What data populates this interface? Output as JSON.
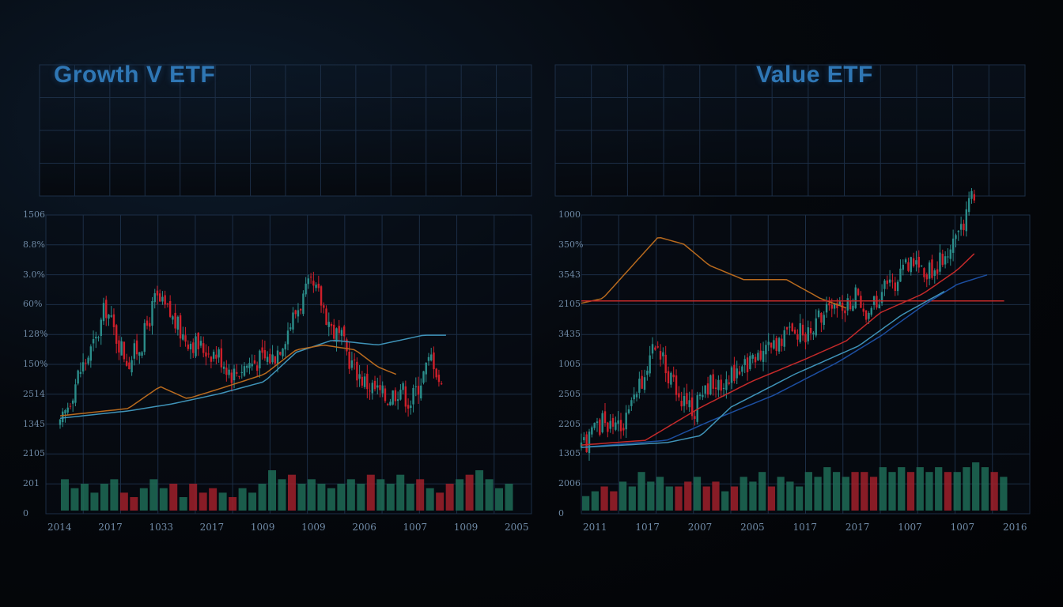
{
  "colors": {
    "grid": "#1c2e46",
    "up": "#2b8d8a",
    "down": "#cf1f2a",
    "vol_up": "#1e6b56",
    "vol_down": "#a0202a",
    "ma_orange": "#b86a1e",
    "ma_blue": "#3f93b8",
    "ma_navy": "#1c4ea0",
    "ma_red": "#c42a2a"
  },
  "chart_data": [
    {
      "type": "candlestick",
      "title": "Growth V ETF",
      "y_tick_labels": [
        "1506",
        "8.8%",
        "3.0%",
        "60%",
        "128%",
        "150%",
        "2514",
        "1345",
        "2105",
        "201",
        "0"
      ],
      "x_tick_labels": [
        "2014",
        "2017",
        "1033",
        "2017",
        "1009",
        "1009",
        "2006",
        "1007",
        "1009",
        "2005"
      ],
      "grid": true,
      "price_range": [
        0,
        10
      ],
      "price_path": [
        [
          0.0,
          1.6
        ],
        [
          0.04,
          3.8
        ],
        [
          0.08,
          5.2
        ],
        [
          0.1,
          6.6
        ],
        [
          0.12,
          5.5
        ],
        [
          0.15,
          4.3
        ],
        [
          0.18,
          5.1
        ],
        [
          0.21,
          6.9
        ],
        [
          0.24,
          6.3
        ],
        [
          0.27,
          5.4
        ],
        [
          0.31,
          4.9
        ],
        [
          0.35,
          4.6
        ],
        [
          0.38,
          3.8
        ],
        [
          0.41,
          4.2
        ],
        [
          0.44,
          4.4
        ],
        [
          0.47,
          4.5
        ],
        [
          0.49,
          5.2
        ],
        [
          0.52,
          6.4
        ],
        [
          0.55,
          7.4
        ],
        [
          0.57,
          7.0
        ],
        [
          0.6,
          5.6
        ],
        [
          0.62,
          5.2
        ],
        [
          0.64,
          4.3
        ],
        [
          0.67,
          3.5
        ],
        [
          0.7,
          3.1
        ],
        [
          0.72,
          2.8
        ],
        [
          0.75,
          3.3
        ],
        [
          0.77,
          2.6
        ],
        [
          0.8,
          3.8
        ],
        [
          0.82,
          4.6
        ],
        [
          0.84,
          3.2
        ]
      ],
      "moving_averages": [
        {
          "color_key": "ma_blue",
          "points": [
            [
              0.0,
              2.0
            ],
            [
              0.15,
              2.3
            ],
            [
              0.25,
              2.6
            ],
            [
              0.35,
              3.0
            ],
            [
              0.45,
              3.5
            ],
            [
              0.52,
              4.7
            ],
            [
              0.6,
              5.2
            ],
            [
              0.7,
              5.0
            ],
            [
              0.8,
              5.4
            ],
            [
              0.85,
              5.4
            ]
          ]
        },
        {
          "color_key": "ma_orange",
          "points": [
            [
              0.0,
              2.1
            ],
            [
              0.15,
              2.4
            ],
            [
              0.22,
              3.3
            ],
            [
              0.28,
              2.8
            ],
            [
              0.35,
              3.2
            ],
            [
              0.45,
              3.8
            ],
            [
              0.52,
              4.8
            ],
            [
              0.58,
              5.0
            ],
            [
              0.65,
              4.8
            ],
            [
              0.7,
              4.1
            ],
            [
              0.74,
              3.8
            ]
          ]
        }
      ],
      "volume_up_down": [
        1,
        1,
        1,
        1,
        1,
        1,
        0,
        0,
        1,
        1,
        1,
        0,
        1,
        0,
        0,
        0,
        1,
        0,
        1,
        1,
        1,
        1,
        1,
        0,
        1,
        1,
        1,
        1,
        1,
        1,
        1,
        0,
        1,
        1,
        1,
        1,
        0,
        1,
        0,
        0,
        1,
        0,
        1,
        1,
        1,
        1
      ],
      "volume_values": [
        7,
        5,
        6,
        4,
        6,
        7,
        4,
        3,
        5,
        7,
        5,
        6,
        3,
        6,
        4,
        5,
        4,
        3,
        5,
        4,
        6,
        9,
        7,
        8,
        6,
        7,
        6,
        5,
        6,
        7,
        6,
        8,
        7,
        6,
        8,
        6,
        7,
        5,
        4,
        6,
        7,
        8,
        9,
        7,
        5,
        6
      ]
    },
    {
      "type": "candlestick",
      "title": "Value ETF",
      "y_tick_labels": [
        "1000",
        "350%",
        "3543",
        "2105",
        "3435",
        "1005",
        "2505",
        "2205",
        "1305",
        "2006",
        "0"
      ],
      "x_tick_labels": [
        "2011",
        "1017",
        "2007",
        "2005",
        "1017",
        "2017",
        "1007",
        "1007",
        "2016"
      ],
      "grid": true,
      "price_range": [
        0,
        10
      ],
      "price_path": [
        [
          0.0,
          0.4
        ],
        [
          0.05,
          1.6
        ],
        [
          0.1,
          1.4
        ],
        [
          0.14,
          3.2
        ],
        [
          0.17,
          4.9
        ],
        [
          0.2,
          3.8
        ],
        [
          0.23,
          2.6
        ],
        [
          0.26,
          1.9
        ],
        [
          0.29,
          3.2
        ],
        [
          0.33,
          2.9
        ],
        [
          0.36,
          3.8
        ],
        [
          0.4,
          4.1
        ],
        [
          0.45,
          4.9
        ],
        [
          0.49,
          5.5
        ],
        [
          0.53,
          5.3
        ],
        [
          0.57,
          6.2
        ],
        [
          0.61,
          6.5
        ],
        [
          0.64,
          6.9
        ],
        [
          0.67,
          6.1
        ],
        [
          0.7,
          7.0
        ],
        [
          0.74,
          7.6
        ],
        [
          0.78,
          8.6
        ],
        [
          0.81,
          7.8
        ],
        [
          0.84,
          8.4
        ],
        [
          0.88,
          9.4
        ],
        [
          0.92,
          11.3
        ]
      ],
      "moving_averages": [
        {
          "color_key": "ma_orange",
          "points": [
            [
              0.0,
              6.6
            ],
            [
              0.05,
              6.8
            ],
            [
              0.12,
              8.2
            ],
            [
              0.18,
              9.4
            ],
            [
              0.24,
              9.1
            ],
            [
              0.3,
              8.2
            ],
            [
              0.38,
              7.6
            ],
            [
              0.48,
              7.6
            ],
            [
              0.56,
              6.8
            ],
            [
              0.62,
              6.4
            ]
          ]
        },
        {
          "color_key": "ma_red",
          "points": [
            [
              0.0,
              6.7
            ],
            [
              0.99,
              6.7
            ]
          ]
        },
        {
          "color_key": "ma_red",
          "points": [
            [
              0.0,
              0.6
            ],
            [
              0.15,
              0.8
            ],
            [
              0.28,
              2.2
            ],
            [
              0.4,
              3.3
            ],
            [
              0.52,
              4.2
            ],
            [
              0.62,
              5.0
            ],
            [
              0.7,
              6.2
            ],
            [
              0.8,
              7.0
            ],
            [
              0.88,
              8.0
            ],
            [
              0.92,
              8.7
            ]
          ]
        },
        {
          "color_key": "ma_navy",
          "points": [
            [
              0.0,
              0.5
            ],
            [
              0.2,
              0.8
            ],
            [
              0.3,
              1.6
            ],
            [
              0.45,
              2.7
            ],
            [
              0.6,
              4.1
            ],
            [
              0.7,
              5.2
            ],
            [
              0.8,
              6.5
            ],
            [
              0.88,
              7.4
            ],
            [
              0.95,
              7.8
            ]
          ]
        },
        {
          "color_key": "ma_blue",
          "points": [
            [
              0.0,
              0.5
            ],
            [
              0.2,
              0.7
            ],
            [
              0.28,
              1.0
            ],
            [
              0.35,
              2.2
            ],
            [
              0.5,
              3.6
            ],
            [
              0.65,
              4.8
            ],
            [
              0.75,
              6.1
            ],
            [
              0.85,
              7.1
            ]
          ]
        }
      ],
      "volume_up_down": [
        1,
        1,
        0,
        0,
        1,
        1,
        1,
        1,
        1,
        1,
        0,
        0,
        1,
        0,
        0,
        1,
        0,
        1,
        1,
        1,
        0,
        1,
        1,
        1,
        1,
        1,
        1,
        1,
        1,
        0,
        0,
        0,
        1,
        1,
        1,
        0,
        1,
        1,
        1,
        0,
        1,
        1,
        1,
        1,
        0,
        1
      ],
      "volume_values": [
        3,
        4,
        5,
        4,
        6,
        5,
        8,
        6,
        7,
        5,
        5,
        6,
        7,
        5,
        6,
        4,
        5,
        7,
        6,
        8,
        5,
        7,
        6,
        5,
        8,
        7,
        9,
        8,
        7,
        8,
        8,
        7,
        9,
        8,
        9,
        8,
        9,
        8,
        9,
        8,
        8,
        9,
        10,
        9,
        8,
        7
      ]
    }
  ]
}
